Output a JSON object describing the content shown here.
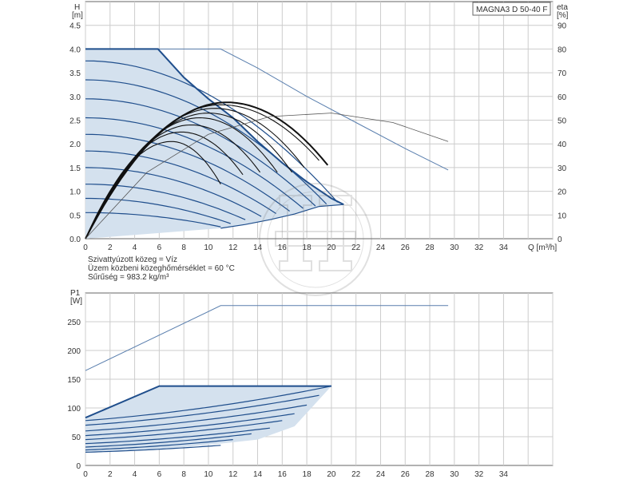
{
  "model_label": "MAGNA3 D 50-40 F",
  "fluid_info": [
    "Szivattyúzott közeg = Víz",
    "Üzem közbeni közeghőmérséklet = 60 °C",
    "Sűrűség = 983.2 kg/m³"
  ],
  "colors": {
    "curve_blue": "#1f4e8c",
    "fill_blue": "#d4e1ee",
    "efficiency_black": "#111111",
    "grid": "#cccccc",
    "thin_line": "#5a7fae"
  },
  "chart_data": [
    {
      "id": "head",
      "type": "line",
      "x_ticks": [
        "0",
        "2",
        "4",
        "6",
        "8",
        "10",
        "12",
        "14",
        "16",
        "18",
        "20",
        "22",
        "24",
        "26",
        "28",
        "30",
        "32",
        "34"
      ],
      "y_ticks": [
        "0.0",
        "0.5",
        "1.0",
        "1.5",
        "2.0",
        "2.5",
        "3.0",
        "3.5",
        "4.0",
        "4.5"
      ],
      "y2_ticks": [
        "0",
        "10",
        "20",
        "30",
        "40",
        "50",
        "60",
        "70",
        "80",
        "90"
      ],
      "xlabel": "Q [m³/h]",
      "ylabel": [
        "H",
        "[m]"
      ],
      "y2label": [
        "eta",
        "[%]"
      ],
      "xlim": [
        0,
        38
      ],
      "ylim": [
        0,
        5
      ],
      "y2lim": [
        0,
        100
      ],
      "grid": true,
      "max_curve": [
        [
          0,
          4.0
        ],
        [
          5.9,
          4.0
        ],
        [
          8,
          3.4
        ],
        [
          10,
          2.95
        ],
        [
          12,
          2.55
        ],
        [
          14,
          2.05
        ],
        [
          16,
          1.6
        ],
        [
          18,
          1.2
        ],
        [
          20,
          0.85
        ],
        [
          21,
          0.72
        ]
      ],
      "min_limit_curve": [
        [
          11,
          0.22
        ],
        [
          13,
          0.3
        ],
        [
          15,
          0.4
        ],
        [
          17,
          0.52
        ],
        [
          19,
          0.68
        ],
        [
          21,
          0.72
        ]
      ],
      "speed_curves": [
        {
          "shutoff": 3.75,
          "qend": 20.5,
          "hend": 0.77
        },
        {
          "shutoff": 3.35,
          "qend": 19.6,
          "hend": 0.73
        },
        {
          "shutoff": 2.95,
          "qend": 18.7,
          "hend": 0.69
        },
        {
          "shutoff": 2.55,
          "qend": 17.7,
          "hend": 0.64
        },
        {
          "shutoff": 2.2,
          "qend": 16.6,
          "hend": 0.58
        },
        {
          "shutoff": 1.85,
          "qend": 15.5,
          "hend": 0.53
        },
        {
          "shutoff": 1.5,
          "qend": 14.3,
          "hend": 0.47
        },
        {
          "shutoff": 1.15,
          "qend": 13.0,
          "hend": 0.4
        },
        {
          "shutoff": 0.85,
          "qend": 11.8,
          "hend": 0.32
        },
        {
          "shutoff": 0.55,
          "qend": 11.0,
          "hend": 0.25
        }
      ],
      "max_speed_extension": [
        [
          0,
          4.0
        ],
        [
          11,
          4.0
        ],
        [
          14,
          3.6
        ],
        [
          18,
          3.0
        ],
        [
          22,
          2.45
        ],
        [
          26,
          1.9
        ],
        [
          29.5,
          1.45
        ]
      ],
      "efficiency_curves": [
        {
          "q_end": 19.7,
          "eta_peak": 57.5,
          "q_peak": 11.5,
          "eta_end": 31
        },
        {
          "q_end": 19.0,
          "eta_peak": 56.5,
          "q_peak": 11.0,
          "eta_end": 33
        },
        {
          "q_end": 17.8,
          "eta_peak": 55,
          "q_peak": 10.5,
          "eta_end": 30
        },
        {
          "q_end": 16.8,
          "eta_peak": 53,
          "q_peak": 10.0,
          "eta_end": 28
        },
        {
          "q_end": 15.6,
          "eta_peak": 51,
          "q_peak": 9.3,
          "eta_end": 28
        },
        {
          "q_end": 14.2,
          "eta_peak": 48,
          "q_peak": 8.6,
          "eta_end": 28
        },
        {
          "q_end": 12.8,
          "eta_peak": 45,
          "q_peak": 7.8,
          "eta_end": 27
        },
        {
          "q_end": 11.0,
          "eta_peak": 41,
          "q_peak": 7.0,
          "eta_end": 23
        }
      ],
      "efficiency_thin": [
        [
          0,
          0
        ],
        [
          5,
          28
        ],
        [
          10,
          44
        ],
        [
          15,
          51.5
        ],
        [
          20,
          53
        ],
        [
          25,
          49
        ],
        [
          29.5,
          41
        ]
      ]
    },
    {
      "id": "power",
      "type": "line",
      "x_ticks": [
        "0",
        "2",
        "4",
        "6",
        "8",
        "10",
        "12",
        "14",
        "16",
        "18",
        "20",
        "22",
        "24",
        "26",
        "28",
        "30",
        "32",
        "34"
      ],
      "y_ticks": [
        "0",
        "50",
        "100",
        "150",
        "200",
        "250"
      ],
      "ylabel": [
        "P1",
        "[W]"
      ],
      "xlim": [
        0,
        38
      ],
      "ylim": [
        0,
        300
      ],
      "grid": true,
      "max_power_line": [
        [
          0,
          165
        ],
        [
          11,
          278
        ],
        [
          29.5,
          278
        ]
      ],
      "power_envelope_top": [
        [
          0,
          83
        ],
        [
          6,
          138
        ],
        [
          20,
          138
        ]
      ],
      "power_envelope_bottom": [
        [
          0,
          22
        ],
        [
          6,
          28
        ],
        [
          11,
          38
        ],
        [
          14,
          45
        ],
        [
          17,
          68
        ],
        [
          20,
          138
        ]
      ],
      "power_curves": [
        {
          "p0": 78,
          "qend": 20,
          "pend": 138
        },
        {
          "p0": 70,
          "qend": 19,
          "pend": 122
        },
        {
          "p0": 60,
          "qend": 18,
          "pend": 105
        },
        {
          "p0": 52,
          "qend": 17,
          "pend": 90
        },
        {
          "p0": 45,
          "qend": 16,
          "pend": 78
        },
        {
          "p0": 38,
          "qend": 15,
          "pend": 65
        },
        {
          "p0": 32,
          "qend": 13.5,
          "pend": 55
        },
        {
          "p0": 27,
          "qend": 12,
          "pend": 45
        },
        {
          "p0": 23,
          "qend": 11,
          "pend": 35
        }
      ]
    }
  ]
}
